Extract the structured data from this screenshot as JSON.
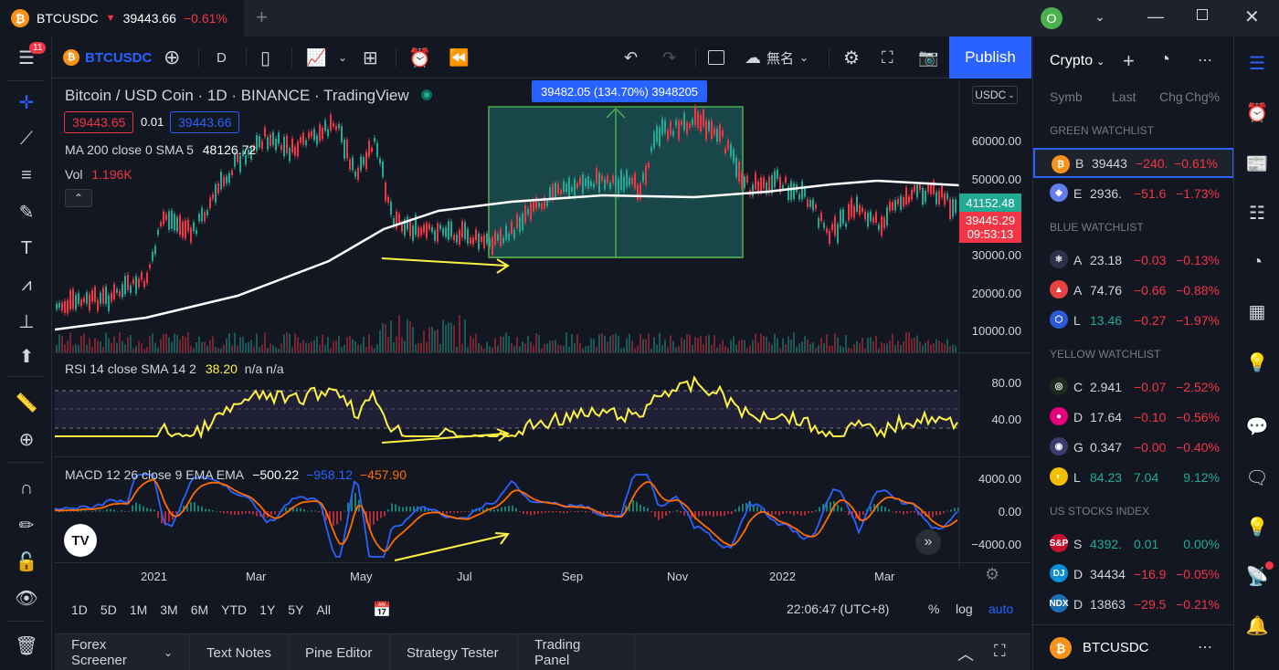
{
  "tab": {
    "symbol": "BTCUSDC",
    "arrow": "▼",
    "price": "39443.66",
    "change": "−0.61%",
    "new_tab": "+"
  },
  "window": {
    "avatar": "O"
  },
  "toolbar": {
    "symbol": "BTCUSDC",
    "interval": "D",
    "layout_name": "無名",
    "publish": "Publish"
  },
  "legend": {
    "title": "Bitcoin / USD Coin · 1D · BINANCE · TradingView",
    "bid": "39443.65",
    "spread": "0.01",
    "ask": "39443.66",
    "ma_label": "MA 200 close 0 SMA 5",
    "ma_value": "48126.72",
    "vol_label": "Vol",
    "vol_value": "1.196K",
    "rsi_label": "RSI 14 close SMA 14 2",
    "rsi_value": "38.20",
    "rsi_na1": "n/a",
    "rsi_na2": "n/a",
    "macd_label": "MACD 12 26 close 9 EMA EMA",
    "macd_v1": "−500.22",
    "macd_v2": "−958.12",
    "macd_v3": "−457.90"
  },
  "measure": {
    "label": "39482.05 (134.70%) 3948205"
  },
  "price_axis": {
    "currency": "USDC",
    "ticks": [
      "60000.00",
      "50000.00",
      "30000.00",
      "20000.00",
      "10000.00"
    ],
    "ma_price": "41152.48",
    "last_price": "39445.29",
    "countdown": "09:53:13"
  },
  "rsi_axis": {
    "ticks": [
      "80.00",
      "40.00"
    ]
  },
  "macd_axis": {
    "ticks": [
      "4000.00",
      "0.00",
      "−4000.00"
    ]
  },
  "time_axis": [
    "2021",
    "Mar",
    "May",
    "Jul",
    "Sep",
    "Nov",
    "2022",
    "Mar"
  ],
  "ranges": [
    "1D",
    "5D",
    "1M",
    "3M",
    "6M",
    "YTD",
    "1Y",
    "5Y",
    "All"
  ],
  "clock": "22:06:47 (UTC+8)",
  "scale": {
    "percent": "%",
    "log": "log",
    "auto": "auto"
  },
  "bottom_tabs": [
    "Forex Screener",
    "Text Notes",
    "Pine Editor",
    "Strategy Tester",
    "Trading Panel"
  ],
  "watchlist": {
    "title": "Crypto",
    "columns": [
      "Symb",
      "Last",
      "Chg",
      "Chg%"
    ],
    "sections": [
      {
        "name": "GREEN WATCHLIST",
        "rows": [
          {
            "sym": "B",
            "last": "39443",
            "chg": "−240.",
            "pct": "−0.61%",
            "icon": "₿",
            "color": "#f7931a",
            "dir": "red"
          },
          {
            "sym": "E",
            "last": "2936.",
            "chg": "−51.6",
            "pct": "−1.73%",
            "icon": "◆",
            "color": "#627eea",
            "dir": "red"
          }
        ]
      },
      {
        "name": "BLUE WATCHLIST",
        "rows": [
          {
            "sym": "A",
            "last": "23.18",
            "chg": "−0.03",
            "pct": "−0.13%",
            "icon": "⚛",
            "color": "#2e3148",
            "dir": "red"
          },
          {
            "sym": "A",
            "last": "74.76",
            "chg": "−0.66",
            "pct": "−0.88%",
            "icon": "▲",
            "color": "#e84142",
            "dir": "red"
          },
          {
            "sym": "L",
            "last": "13.46",
            "chg": "−0.27",
            "pct": "−1.97%",
            "icon": "⬡",
            "color": "#2a5ada",
            "dir": "green"
          }
        ]
      },
      {
        "name": "YELLOW WATCHLIST",
        "rows": [
          {
            "sym": "C",
            "last": "2.941",
            "chg": "−0.07",
            "pct": "−2.52%",
            "icon": "◎",
            "color": "#1f2a1e",
            "dir": "red"
          },
          {
            "sym": "D",
            "last": "17.64",
            "chg": "−0.10",
            "pct": "−0.56%",
            "icon": "●",
            "color": "#e6007a",
            "dir": "red"
          },
          {
            "sym": "G",
            "last": "0.347",
            "chg": "−0.00",
            "pct": "−0.40%",
            "icon": "◉",
            "color": "#3b3b6d",
            "dir": "red"
          },
          {
            "sym": "L",
            "last": "84.23",
            "chg": "7.04",
            "pct": "9.12%",
            "icon": "◐",
            "color": "#f5c000",
            "dir": "green"
          }
        ]
      },
      {
        "name": "US STOCKS INDEX",
        "rows": [
          {
            "sym": "S",
            "last": "4392.",
            "chg": "0.01",
            "pct": "0.00%",
            "icon": "S&P",
            "color": "#c8102e",
            "dir": "green"
          },
          {
            "sym": "D",
            "last": "34434",
            "chg": "−16.9",
            "pct": "−0.05%",
            "icon": "DJ",
            "color": "#0a8fd6",
            "dir": "red"
          },
          {
            "sym": "D",
            "last": "13863",
            "chg": "−29.5",
            "pct": "−0.21%",
            "icon": "NDX",
            "color": "#1a6fb5",
            "dir": "red"
          }
        ]
      }
    ],
    "footer_symbol": "BTCUSDC"
  },
  "colors": {
    "accent": "#2962ff",
    "up": "#22ab94",
    "down": "#f23645",
    "rsi": "#fdf244",
    "ma": "#ffffff",
    "macd": "#2962ff",
    "signal": "#ff6d00"
  }
}
